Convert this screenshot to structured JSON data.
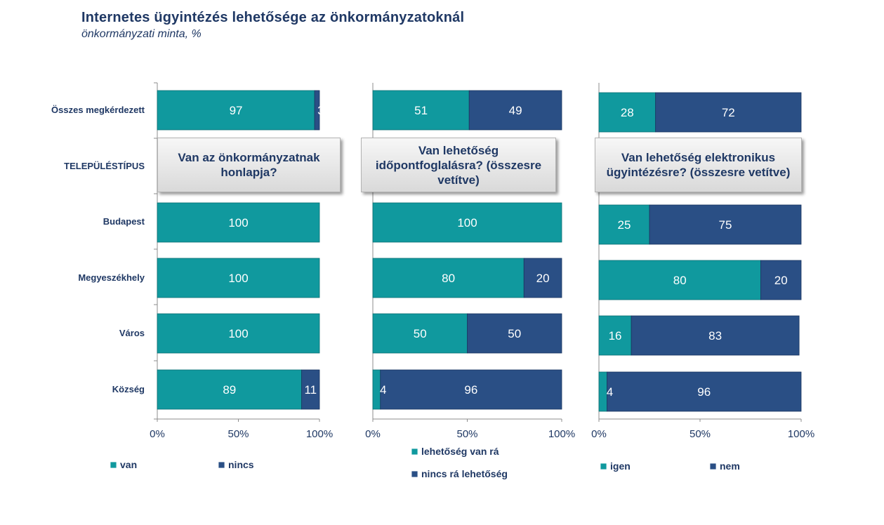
{
  "title": "Internetes ügyintézés lehetősége az önkormányzatoknál",
  "subtitle": "önkormányzati minta, %",
  "colors": {
    "positive": "#10999e",
    "negative": "#2a4f85",
    "text": "#1f3864"
  },
  "chart_data": {
    "type": "bar",
    "orientation": "horizontal-stacked-100",
    "title": "Internetes ügyintézés lehetősége az önkormányzatoknál",
    "subtitle": "önkormányzati minta, %",
    "categories": [
      "Összes megkérdezett",
      "TELEPÜLÉSTÍPUS",
      "Budapest",
      "Megyeszékhely",
      "Város",
      "Község"
    ],
    "xlim": [
      0,
      100
    ],
    "x_ticks": [
      "0%",
      "50%",
      "100%"
    ],
    "panels": [
      {
        "question": "Van az önkormányzatnak honlapja?",
        "series": [
          {
            "name": "van",
            "values": [
              97,
              null,
              100,
              100,
              100,
              89
            ]
          },
          {
            "name": "nincs",
            "values": [
              3,
              null,
              0,
              0,
              0,
              11
            ]
          }
        ]
      },
      {
        "question": "Van lehetőség időpontfoglalásra? (összesre vetítve)",
        "series": [
          {
            "name": "lehetőség van rá",
            "values": [
              51,
              null,
              100,
              80,
              50,
              4
            ]
          },
          {
            "name": "nincs rá lehetőség",
            "values": [
              49,
              null,
              0,
              20,
              50,
              96
            ]
          }
        ]
      },
      {
        "question": "Van lehetőség elektronikus ügyintézésre? (összesre vetítve)",
        "series": [
          {
            "name": "igen",
            "values": [
              28,
              null,
              25,
              80,
              16,
              4
            ]
          },
          {
            "name": "nem",
            "values": [
              72,
              null,
              75,
              20,
              83,
              96
            ]
          }
        ]
      }
    ]
  }
}
